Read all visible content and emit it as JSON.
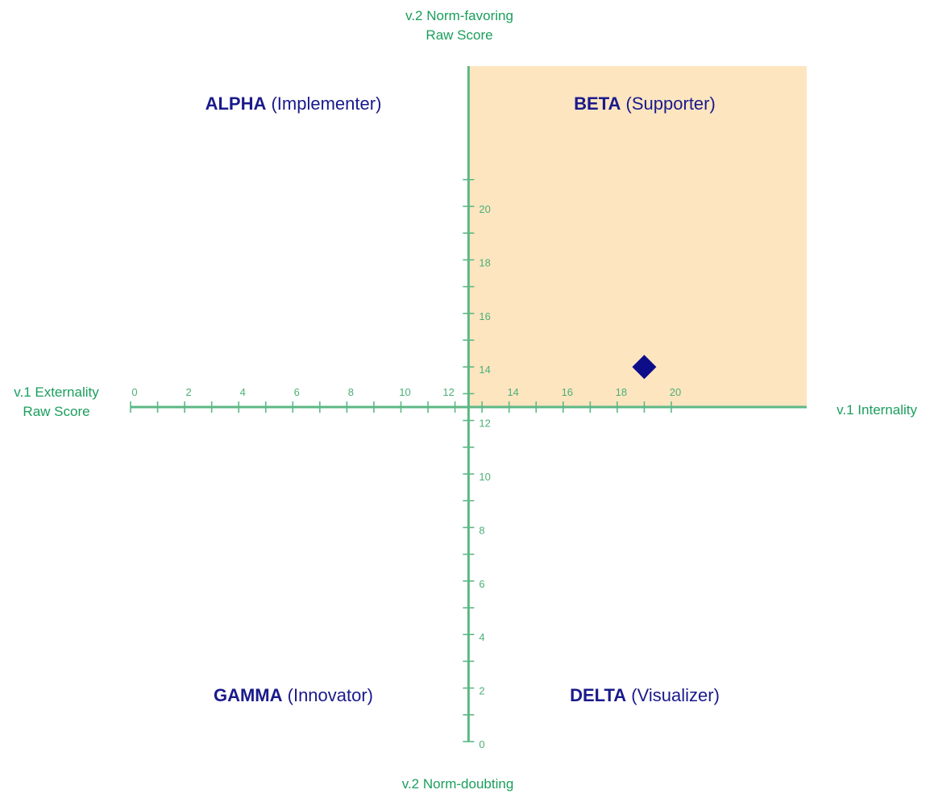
{
  "colors": {
    "axis": "#5cb885",
    "axis_text": "#1a9e5c",
    "tick_text": "#4caf78",
    "quadrant_fill": "#fde5c0",
    "quadrant_text": "#1a1a8c",
    "marker": "#0d0d8a"
  },
  "chart_data": {
    "type": "scatter",
    "x_axis": {
      "label_left": [
        "v.1 Externality",
        "Raw Score"
      ],
      "label_right": "v.1 Internality",
      "range": [
        0,
        25
      ],
      "ticks": [
        0,
        2,
        4,
        6,
        8,
        10,
        12,
        14,
        16,
        18,
        20
      ],
      "minor_step": 1
    },
    "y_axis": {
      "label_top": [
        "v.2 Norm-favoring",
        "Raw Score"
      ],
      "label_bottom": "v.2 Norm-doubting",
      "range": [
        0,
        25
      ],
      "ticks": [
        0,
        2,
        4,
        6,
        8,
        10,
        12,
        14,
        16,
        18,
        20
      ],
      "minor_step": 1
    },
    "center": {
      "x": 12.5,
      "y": 12.5
    },
    "highlighted_quadrant": "top-right",
    "quadrants": [
      {
        "position": "top-left",
        "name": "ALPHA",
        "desc": "(Implementer)"
      },
      {
        "position": "top-right",
        "name": "BETA",
        "desc": "(Supporter)"
      },
      {
        "position": "bottom-left",
        "name": "GAMMA",
        "desc": "(Innovator)"
      },
      {
        "position": "bottom-right",
        "name": "DELTA",
        "desc": "(Visualizer)"
      }
    ],
    "points": [
      {
        "x": 19,
        "y": 14,
        "marker": "diamond"
      }
    ]
  }
}
